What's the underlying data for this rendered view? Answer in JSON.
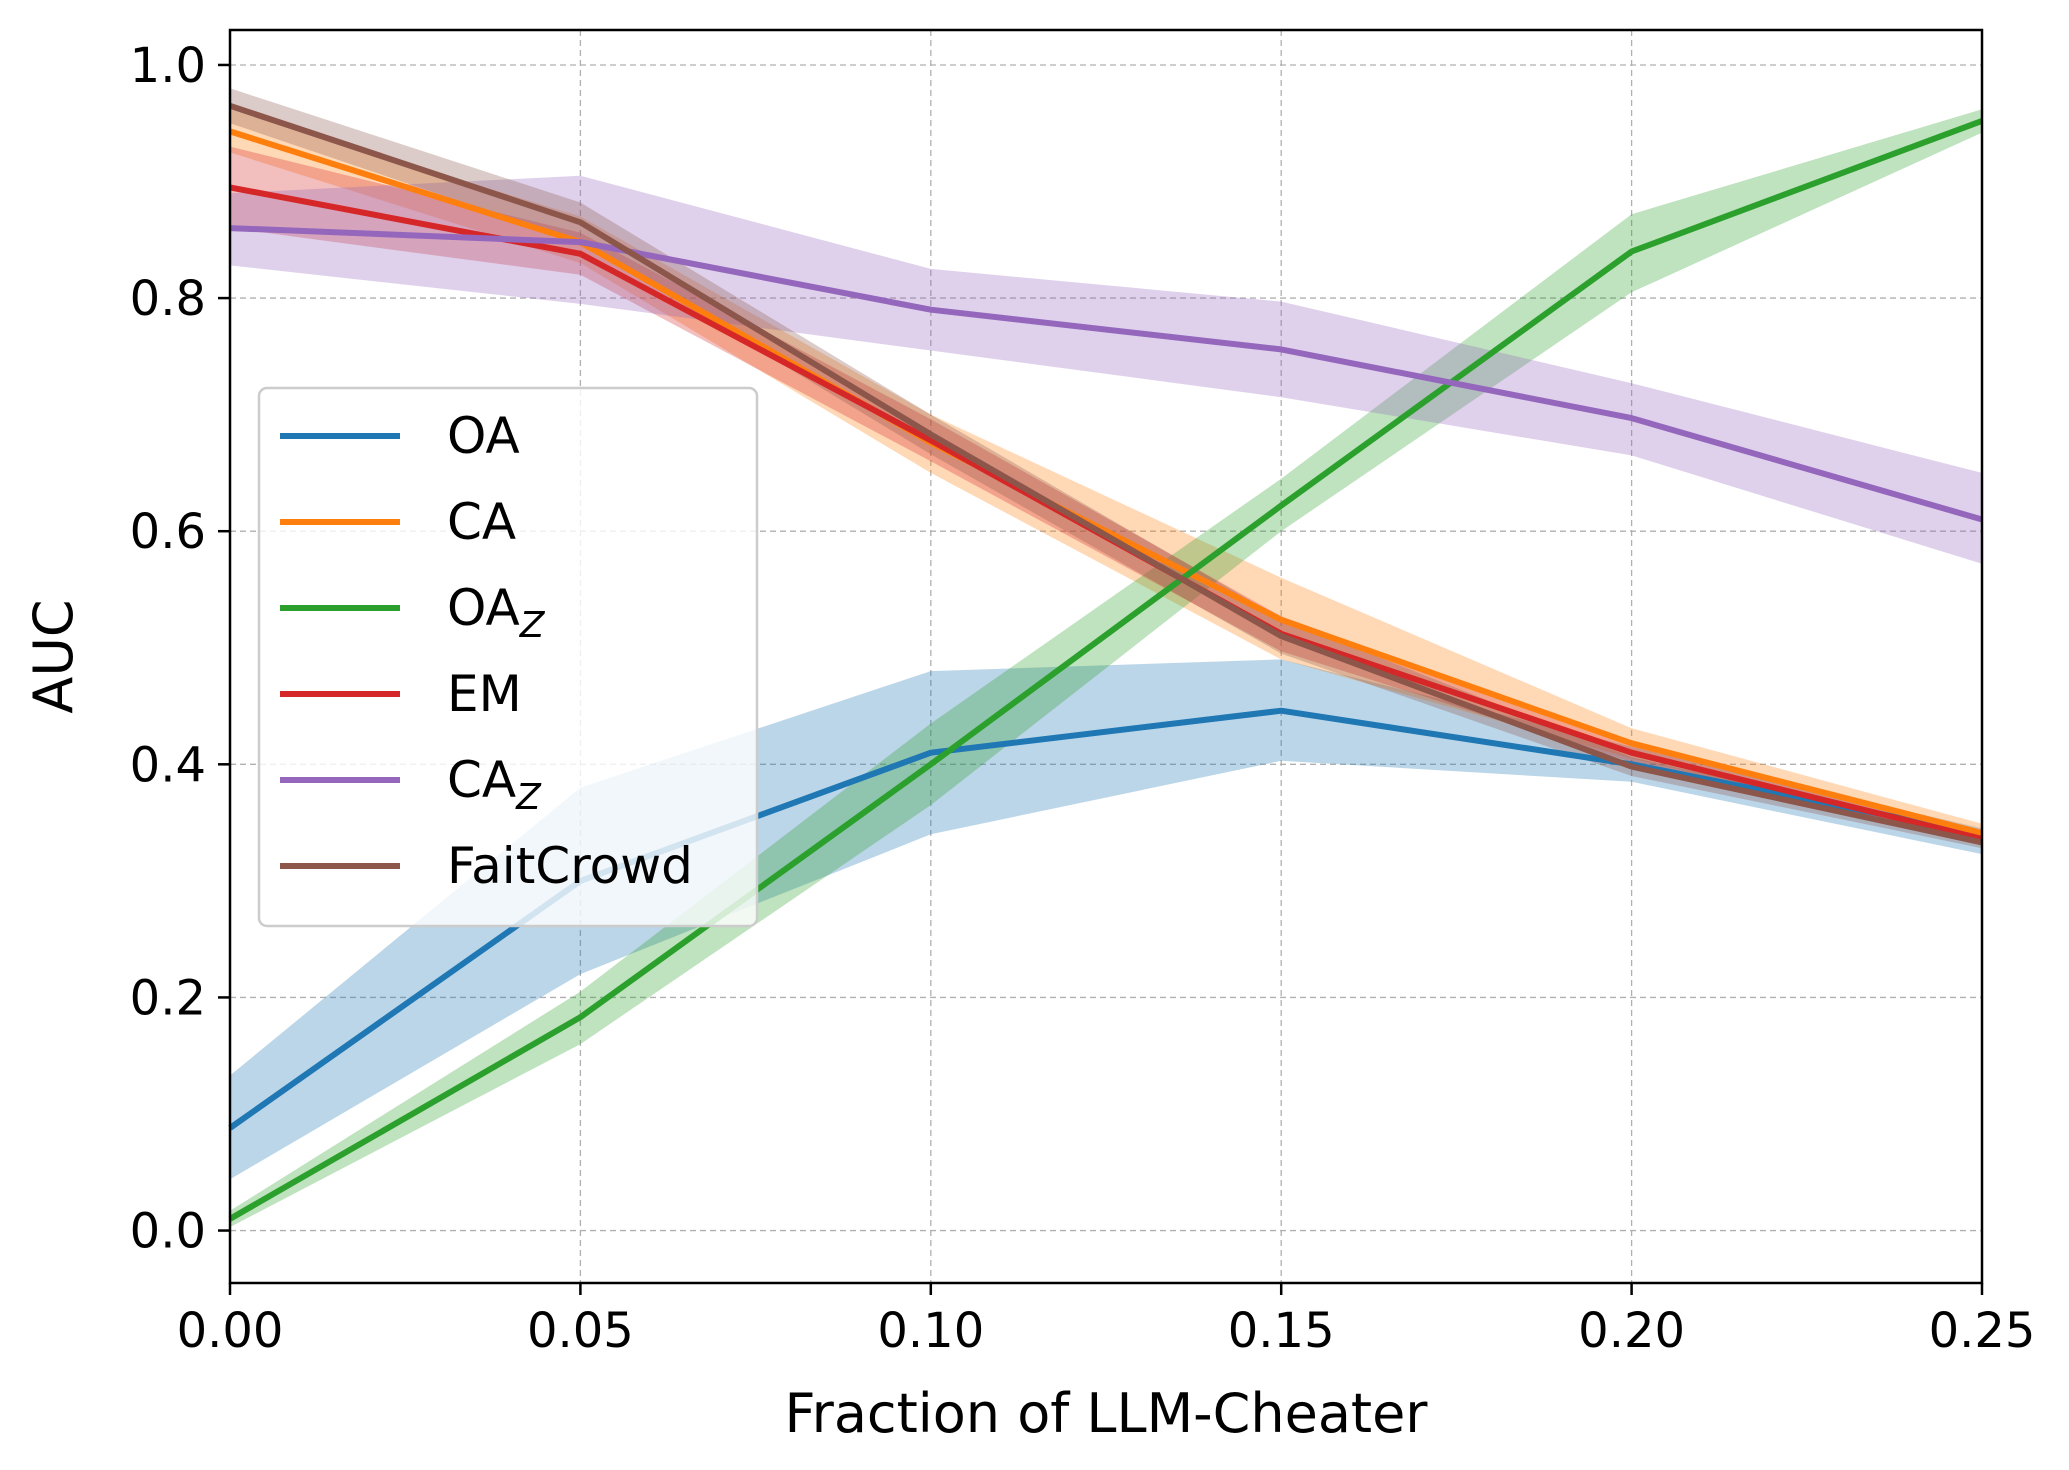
{
  "chart_data": {
    "type": "line",
    "xlabel": "Fraction of LLM-Cheater",
    "ylabel": "AUC",
    "xlim": [
      0.0,
      0.25
    ],
    "ylim": [
      -0.045,
      1.03
    ],
    "x": [
      0.0,
      0.05,
      0.1,
      0.15,
      0.2,
      0.25
    ],
    "x_tick_values": [
      0.0,
      0.05,
      0.1,
      0.15,
      0.2,
      0.25
    ],
    "x_tick_labels": [
      "0.00",
      "0.05",
      "0.10",
      "0.15",
      "0.20",
      "0.25"
    ],
    "y_tick_values": [
      0.0,
      0.2,
      0.4,
      0.6,
      0.8,
      1.0
    ],
    "y_tick_labels": [
      "0.0",
      "0.2",
      "0.4",
      "0.6",
      "0.8",
      "1.0"
    ],
    "grid": true,
    "legend_position": "center-left",
    "series": [
      {
        "name": "OA",
        "subscript": "",
        "color": "#1f77b4",
        "values": [
          0.088,
          0.3,
          0.41,
          0.446,
          0.4,
          0.34
        ],
        "lower": [
          0.044,
          0.22,
          0.34,
          0.403,
          0.385,
          0.323
        ],
        "upper": [
          0.133,
          0.38,
          0.48,
          0.49,
          0.415,
          0.345
        ]
      },
      {
        "name": "CA",
        "subscript": "",
        "color": "#ff7f0e",
        "values": [
          0.943,
          0.848,
          0.676,
          0.524,
          0.418,
          0.341
        ],
        "lower": [
          0.925,
          0.83,
          0.65,
          0.49,
          0.405,
          0.333
        ],
        "upper": [
          0.962,
          0.87,
          0.7,
          0.56,
          0.431,
          0.349
        ]
      },
      {
        "name": "OA",
        "subscript": "Z",
        "color": "#2ca02c",
        "values": [
          0.01,
          0.183,
          0.4,
          0.622,
          0.84,
          0.952
        ],
        "lower": [
          0.003,
          0.16,
          0.365,
          0.6,
          0.805,
          0.942
        ],
        "upper": [
          0.017,
          0.205,
          0.435,
          0.645,
          0.872,
          0.962
        ]
      },
      {
        "name": "EM",
        "subscript": "",
        "color": "#d62728",
        "values": [
          0.895,
          0.838,
          0.678,
          0.512,
          0.41,
          0.336
        ],
        "lower": [
          0.86,
          0.82,
          0.66,
          0.497,
          0.402,
          0.331
        ],
        "upper": [
          0.93,
          0.856,
          0.696,
          0.527,
          0.418,
          0.341
        ]
      },
      {
        "name": "CA",
        "subscript": "Z",
        "color": "#9467bd",
        "values": [
          0.86,
          0.848,
          0.79,
          0.756,
          0.697,
          0.61
        ],
        "lower": [
          0.828,
          0.795,
          0.755,
          0.715,
          0.665,
          0.572
        ],
        "upper": [
          0.89,
          0.905,
          0.825,
          0.797,
          0.727,
          0.65
        ]
      },
      {
        "name": "FaitCrowd",
        "subscript": "",
        "color": "#8c564b",
        "values": [
          0.965,
          0.865,
          0.683,
          0.51,
          0.398,
          0.333
        ],
        "lower": [
          0.95,
          0.848,
          0.666,
          0.495,
          0.39,
          0.328
        ],
        "upper": [
          0.98,
          0.882,
          0.7,
          0.525,
          0.406,
          0.338
        ]
      }
    ]
  }
}
